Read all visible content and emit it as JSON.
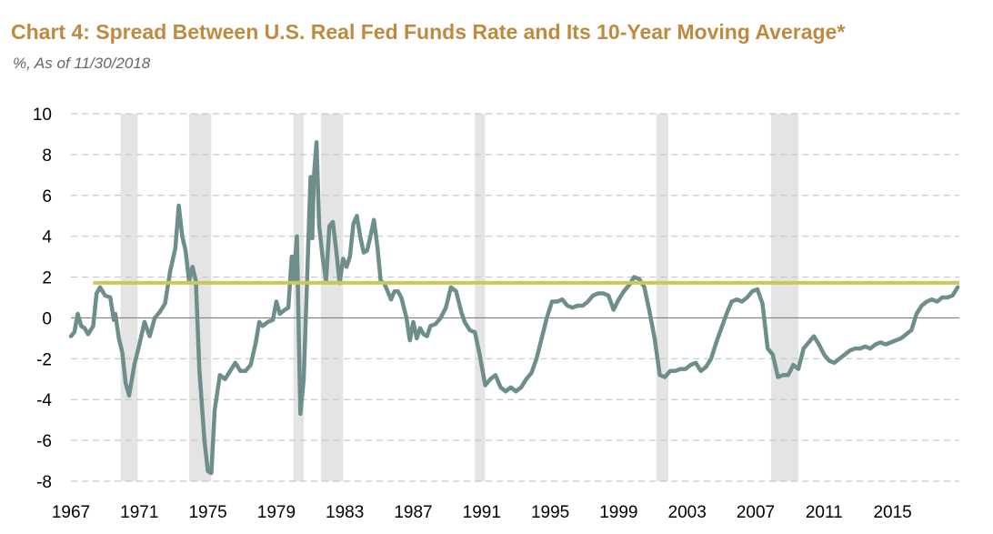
{
  "title": "Chart 4: Spread Between U.S. Real Fed Funds Rate and Its 10-Year Moving Average*",
  "subtitle": "%, As of 11/30/2018",
  "colors": {
    "title": "#C08A3E",
    "series": "#6E8E8C",
    "reference_line": "#C9C95A",
    "recession": "#E4E4E4",
    "grid": "#C8C8C8",
    "zero_line": "#808080"
  },
  "chart_data": {
    "type": "line",
    "title": "Chart 4: Spread Between U.S. Real Fed Funds Rate and Its 10-Year Moving Average*",
    "subtitle": "%, As of 11/30/2018",
    "xlabel": "",
    "ylabel": "",
    "xlim": [
      1967.0,
      2018.9
    ],
    "ylim": [
      -8,
      10
    ],
    "x_ticks": [
      1967,
      1971,
      1975,
      1979,
      1983,
      1987,
      1991,
      1995,
      1999,
      2003,
      2007,
      2011,
      2015
    ],
    "x_tick_labels": [
      "1967",
      "1971",
      "1975",
      "1979",
      "1983",
      "1987",
      "1991",
      "1995",
      "1999",
      "2003",
      "2007",
      "2011",
      "2015"
    ],
    "y_ticks": [
      -8,
      -6,
      -4,
      -2,
      0,
      2,
      4,
      6,
      8,
      10
    ],
    "y_tick_labels": [
      "-8",
      "-6",
      "-4",
      "-2",
      "0",
      "2",
      "4",
      "6",
      "8",
      "10"
    ],
    "grid": "horizontal dashed",
    "legend": "none",
    "recession_shading": [
      [
        1969.9,
        1970.9
      ],
      [
        1973.9,
        1975.2
      ],
      [
        1980.0,
        1980.6
      ],
      [
        1981.6,
        1982.9
      ],
      [
        1990.6,
        1991.2
      ],
      [
        2001.2,
        2001.9
      ],
      [
        2007.9,
        2009.5
      ]
    ],
    "reference_line": {
      "y": 1.72
    },
    "series": [
      {
        "values": [
          [
            1967.0,
            -0.9
          ],
          [
            1967.2,
            -0.7
          ],
          [
            1967.4,
            0.2
          ],
          [
            1967.6,
            -0.4
          ],
          [
            1967.8,
            -0.5
          ],
          [
            1968.0,
            -0.8
          ],
          [
            1968.3,
            -0.4
          ],
          [
            1968.5,
            1.2
          ],
          [
            1968.7,
            1.5
          ],
          [
            1969.0,
            1.1
          ],
          [
            1969.3,
            1.0
          ],
          [
            1969.5,
            -0.1
          ],
          [
            1969.6,
            0.2
          ],
          [
            1969.8,
            -1.0
          ],
          [
            1970.0,
            -1.7
          ],
          [
            1970.2,
            -3.2
          ],
          [
            1970.4,
            -3.8
          ],
          [
            1970.7,
            -2.3
          ],
          [
            1971.0,
            -1.3
          ],
          [
            1971.3,
            -0.2
          ],
          [
            1971.6,
            -0.9
          ],
          [
            1971.9,
            0.0
          ],
          [
            1972.2,
            0.3
          ],
          [
            1972.5,
            0.7
          ],
          [
            1972.8,
            2.3
          ],
          [
            1973.1,
            3.4
          ],
          [
            1973.3,
            5.5
          ],
          [
            1973.5,
            4.0
          ],
          [
            1973.7,
            3.3
          ],
          [
            1973.9,
            1.8
          ],
          [
            1974.1,
            2.5
          ],
          [
            1974.3,
            1.8
          ],
          [
            1974.5,
            -2.5
          ],
          [
            1974.8,
            -6.0
          ],
          [
            1975.0,
            -7.5
          ],
          [
            1975.2,
            -7.6
          ],
          [
            1975.4,
            -4.5
          ],
          [
            1975.7,
            -2.8
          ],
          [
            1976.0,
            -3.0
          ],
          [
            1976.3,
            -2.6
          ],
          [
            1976.6,
            -2.2
          ],
          [
            1976.9,
            -2.6
          ],
          [
            1977.2,
            -2.6
          ],
          [
            1977.5,
            -2.3
          ],
          [
            1977.8,
            -1.2
          ],
          [
            1978.0,
            -0.2
          ],
          [
            1978.2,
            -0.4
          ],
          [
            1978.5,
            -0.2
          ],
          [
            1978.8,
            -0.1
          ],
          [
            1979.0,
            0.8
          ],
          [
            1979.2,
            0.2
          ],
          [
            1979.5,
            0.4
          ],
          [
            1979.7,
            0.5
          ],
          [
            1979.9,
            3.0
          ],
          [
            1980.0,
            1.8
          ],
          [
            1980.2,
            4.0
          ],
          [
            1980.4,
            -4.7
          ],
          [
            1980.6,
            -3.0
          ],
          [
            1980.8,
            2.0
          ],
          [
            1981.0,
            6.9
          ],
          [
            1981.1,
            3.9
          ],
          [
            1981.2,
            7.0
          ],
          [
            1981.35,
            8.6
          ],
          [
            1981.5,
            4.5
          ],
          [
            1981.7,
            3.0
          ],
          [
            1981.9,
            1.8
          ],
          [
            1982.1,
            4.5
          ],
          [
            1982.3,
            4.7
          ],
          [
            1982.5,
            3.3
          ],
          [
            1982.7,
            1.7
          ],
          [
            1982.9,
            2.9
          ],
          [
            1983.1,
            2.5
          ],
          [
            1983.3,
            3.0
          ],
          [
            1983.5,
            4.6
          ],
          [
            1983.7,
            5.0
          ],
          [
            1983.9,
            4.0
          ],
          [
            1984.1,
            3.2
          ],
          [
            1984.3,
            3.3
          ],
          [
            1984.5,
            4.0
          ],
          [
            1984.7,
            4.8
          ],
          [
            1984.9,
            3.5
          ],
          [
            1985.1,
            1.8
          ],
          [
            1985.3,
            1.7
          ],
          [
            1985.5,
            1.3
          ],
          [
            1985.7,
            0.9
          ],
          [
            1985.9,
            1.3
          ],
          [
            1986.1,
            1.3
          ],
          [
            1986.3,
            1.0
          ],
          [
            1986.6,
            0.0
          ],
          [
            1986.8,
            -1.1
          ],
          [
            1987.0,
            -0.2
          ],
          [
            1987.2,
            -1.0
          ],
          [
            1987.4,
            -0.5
          ],
          [
            1987.6,
            -0.8
          ],
          [
            1987.8,
            -0.9
          ],
          [
            1988.0,
            -0.4
          ],
          [
            1988.3,
            -0.3
          ],
          [
            1988.6,
            0.0
          ],
          [
            1988.9,
            0.5
          ],
          [
            1989.2,
            1.5
          ],
          [
            1989.5,
            1.3
          ],
          [
            1989.8,
            0.3
          ],
          [
            1990.0,
            -0.2
          ],
          [
            1990.3,
            -0.6
          ],
          [
            1990.6,
            -0.7
          ],
          [
            1990.9,
            -1.9
          ],
          [
            1991.2,
            -3.3
          ],
          [
            1991.5,
            -3.0
          ],
          [
            1991.8,
            -2.8
          ],
          [
            1992.1,
            -3.4
          ],
          [
            1992.4,
            -3.6
          ],
          [
            1992.7,
            -3.4
          ],
          [
            1993.0,
            -3.6
          ],
          [
            1993.3,
            -3.4
          ],
          [
            1993.6,
            -3.0
          ],
          [
            1993.9,
            -2.7
          ],
          [
            1994.2,
            -2.0
          ],
          [
            1994.5,
            -1.0
          ],
          [
            1994.8,
            0.0
          ],
          [
            1995.1,
            0.8
          ],
          [
            1995.4,
            0.8
          ],
          [
            1995.7,
            0.9
          ],
          [
            1996.0,
            0.6
          ],
          [
            1996.3,
            0.5
          ],
          [
            1996.6,
            0.6
          ],
          [
            1996.9,
            0.6
          ],
          [
            1997.2,
            0.8
          ],
          [
            1997.5,
            1.1
          ],
          [
            1997.8,
            1.2
          ],
          [
            1998.1,
            1.2
          ],
          [
            1998.4,
            1.1
          ],
          [
            1998.7,
            0.4
          ],
          [
            1999.0,
            0.9
          ],
          [
            1999.3,
            1.3
          ],
          [
            1999.6,
            1.6
          ],
          [
            1999.9,
            2.0
          ],
          [
            2000.2,
            1.9
          ],
          [
            2000.5,
            1.5
          ],
          [
            2000.8,
            0.3
          ],
          [
            2001.1,
            -1.0
          ],
          [
            2001.4,
            -2.8
          ],
          [
            2001.7,
            -2.9
          ],
          [
            2002.0,
            -2.6
          ],
          [
            2002.3,
            -2.6
          ],
          [
            2002.6,
            -2.5
          ],
          [
            2002.9,
            -2.5
          ],
          [
            2003.2,
            -2.3
          ],
          [
            2003.5,
            -2.2
          ],
          [
            2003.8,
            -2.6
          ],
          [
            2004.1,
            -2.4
          ],
          [
            2004.4,
            -2.0
          ],
          [
            2004.7,
            -1.2
          ],
          [
            2005.0,
            -0.5
          ],
          [
            2005.3,
            0.2
          ],
          [
            2005.6,
            0.8
          ],
          [
            2005.9,
            0.9
          ],
          [
            2006.2,
            0.8
          ],
          [
            2006.5,
            1.0
          ],
          [
            2006.8,
            1.3
          ],
          [
            2007.1,
            1.4
          ],
          [
            2007.4,
            0.7
          ],
          [
            2007.7,
            -1.5
          ],
          [
            2008.0,
            -1.8
          ],
          [
            2008.3,
            -2.9
          ],
          [
            2008.6,
            -2.8
          ],
          [
            2008.9,
            -2.8
          ],
          [
            2009.2,
            -2.3
          ],
          [
            2009.5,
            -2.5
          ],
          [
            2009.8,
            -1.5
          ],
          [
            2010.1,
            -1.2
          ],
          [
            2010.4,
            -0.9
          ],
          [
            2010.7,
            -1.3
          ],
          [
            2011.0,
            -1.8
          ],
          [
            2011.3,
            -2.1
          ],
          [
            2011.6,
            -2.2
          ],
          [
            2011.9,
            -2.0
          ],
          [
            2012.2,
            -1.8
          ],
          [
            2012.5,
            -1.6
          ],
          [
            2012.8,
            -1.5
          ],
          [
            2013.1,
            -1.5
          ],
          [
            2013.4,
            -1.4
          ],
          [
            2013.7,
            -1.5
          ],
          [
            2014.0,
            -1.3
          ],
          [
            2014.3,
            -1.2
          ],
          [
            2014.6,
            -1.3
          ],
          [
            2014.9,
            -1.2
          ],
          [
            2015.2,
            -1.1
          ],
          [
            2015.5,
            -1.0
          ],
          [
            2015.8,
            -0.8
          ],
          [
            2016.1,
            -0.6
          ],
          [
            2016.4,
            0.2
          ],
          [
            2016.7,
            0.6
          ],
          [
            2017.0,
            0.8
          ],
          [
            2017.3,
            0.9
          ],
          [
            2017.6,
            0.8
          ],
          [
            2017.9,
            1.0
          ],
          [
            2018.2,
            1.0
          ],
          [
            2018.5,
            1.1
          ],
          [
            2018.8,
            1.5
          ]
        ]
      }
    ]
  }
}
